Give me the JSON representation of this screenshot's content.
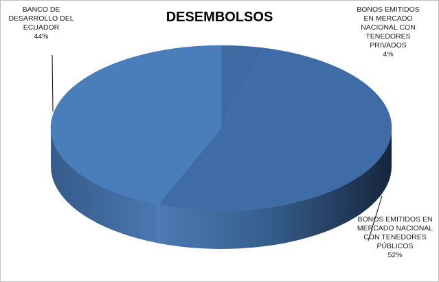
{
  "chart_data": {
    "type": "pie",
    "style": "3d",
    "title": "DESEMBOLSOS",
    "slices": [
      {
        "label_lines": [
          "BONOS EMITIDOS",
          "EN MERCADO",
          "NACIONAL CON",
          "TENEDORES",
          "PRIVADOS"
        ],
        "value": 4,
        "value_label": "4%",
        "color": "#3d6aa2"
      },
      {
        "label_lines": [
          "BONOS EMITIDOS EN",
          "MERCADO NACIONAL",
          "CON TENEDORES",
          "PÚBLICOS"
        ],
        "value": 52,
        "value_label": "52%",
        "color": "#3f6ca6"
      },
      {
        "label_lines": [
          "BANCO DE",
          "DESARROLLO DEL",
          "ECUADOR"
        ],
        "value": 44,
        "value_label": "44%",
        "color": "#4a7ebb"
      }
    ],
    "legend": "none",
    "data_labels": "outside-with-leader-lines"
  }
}
